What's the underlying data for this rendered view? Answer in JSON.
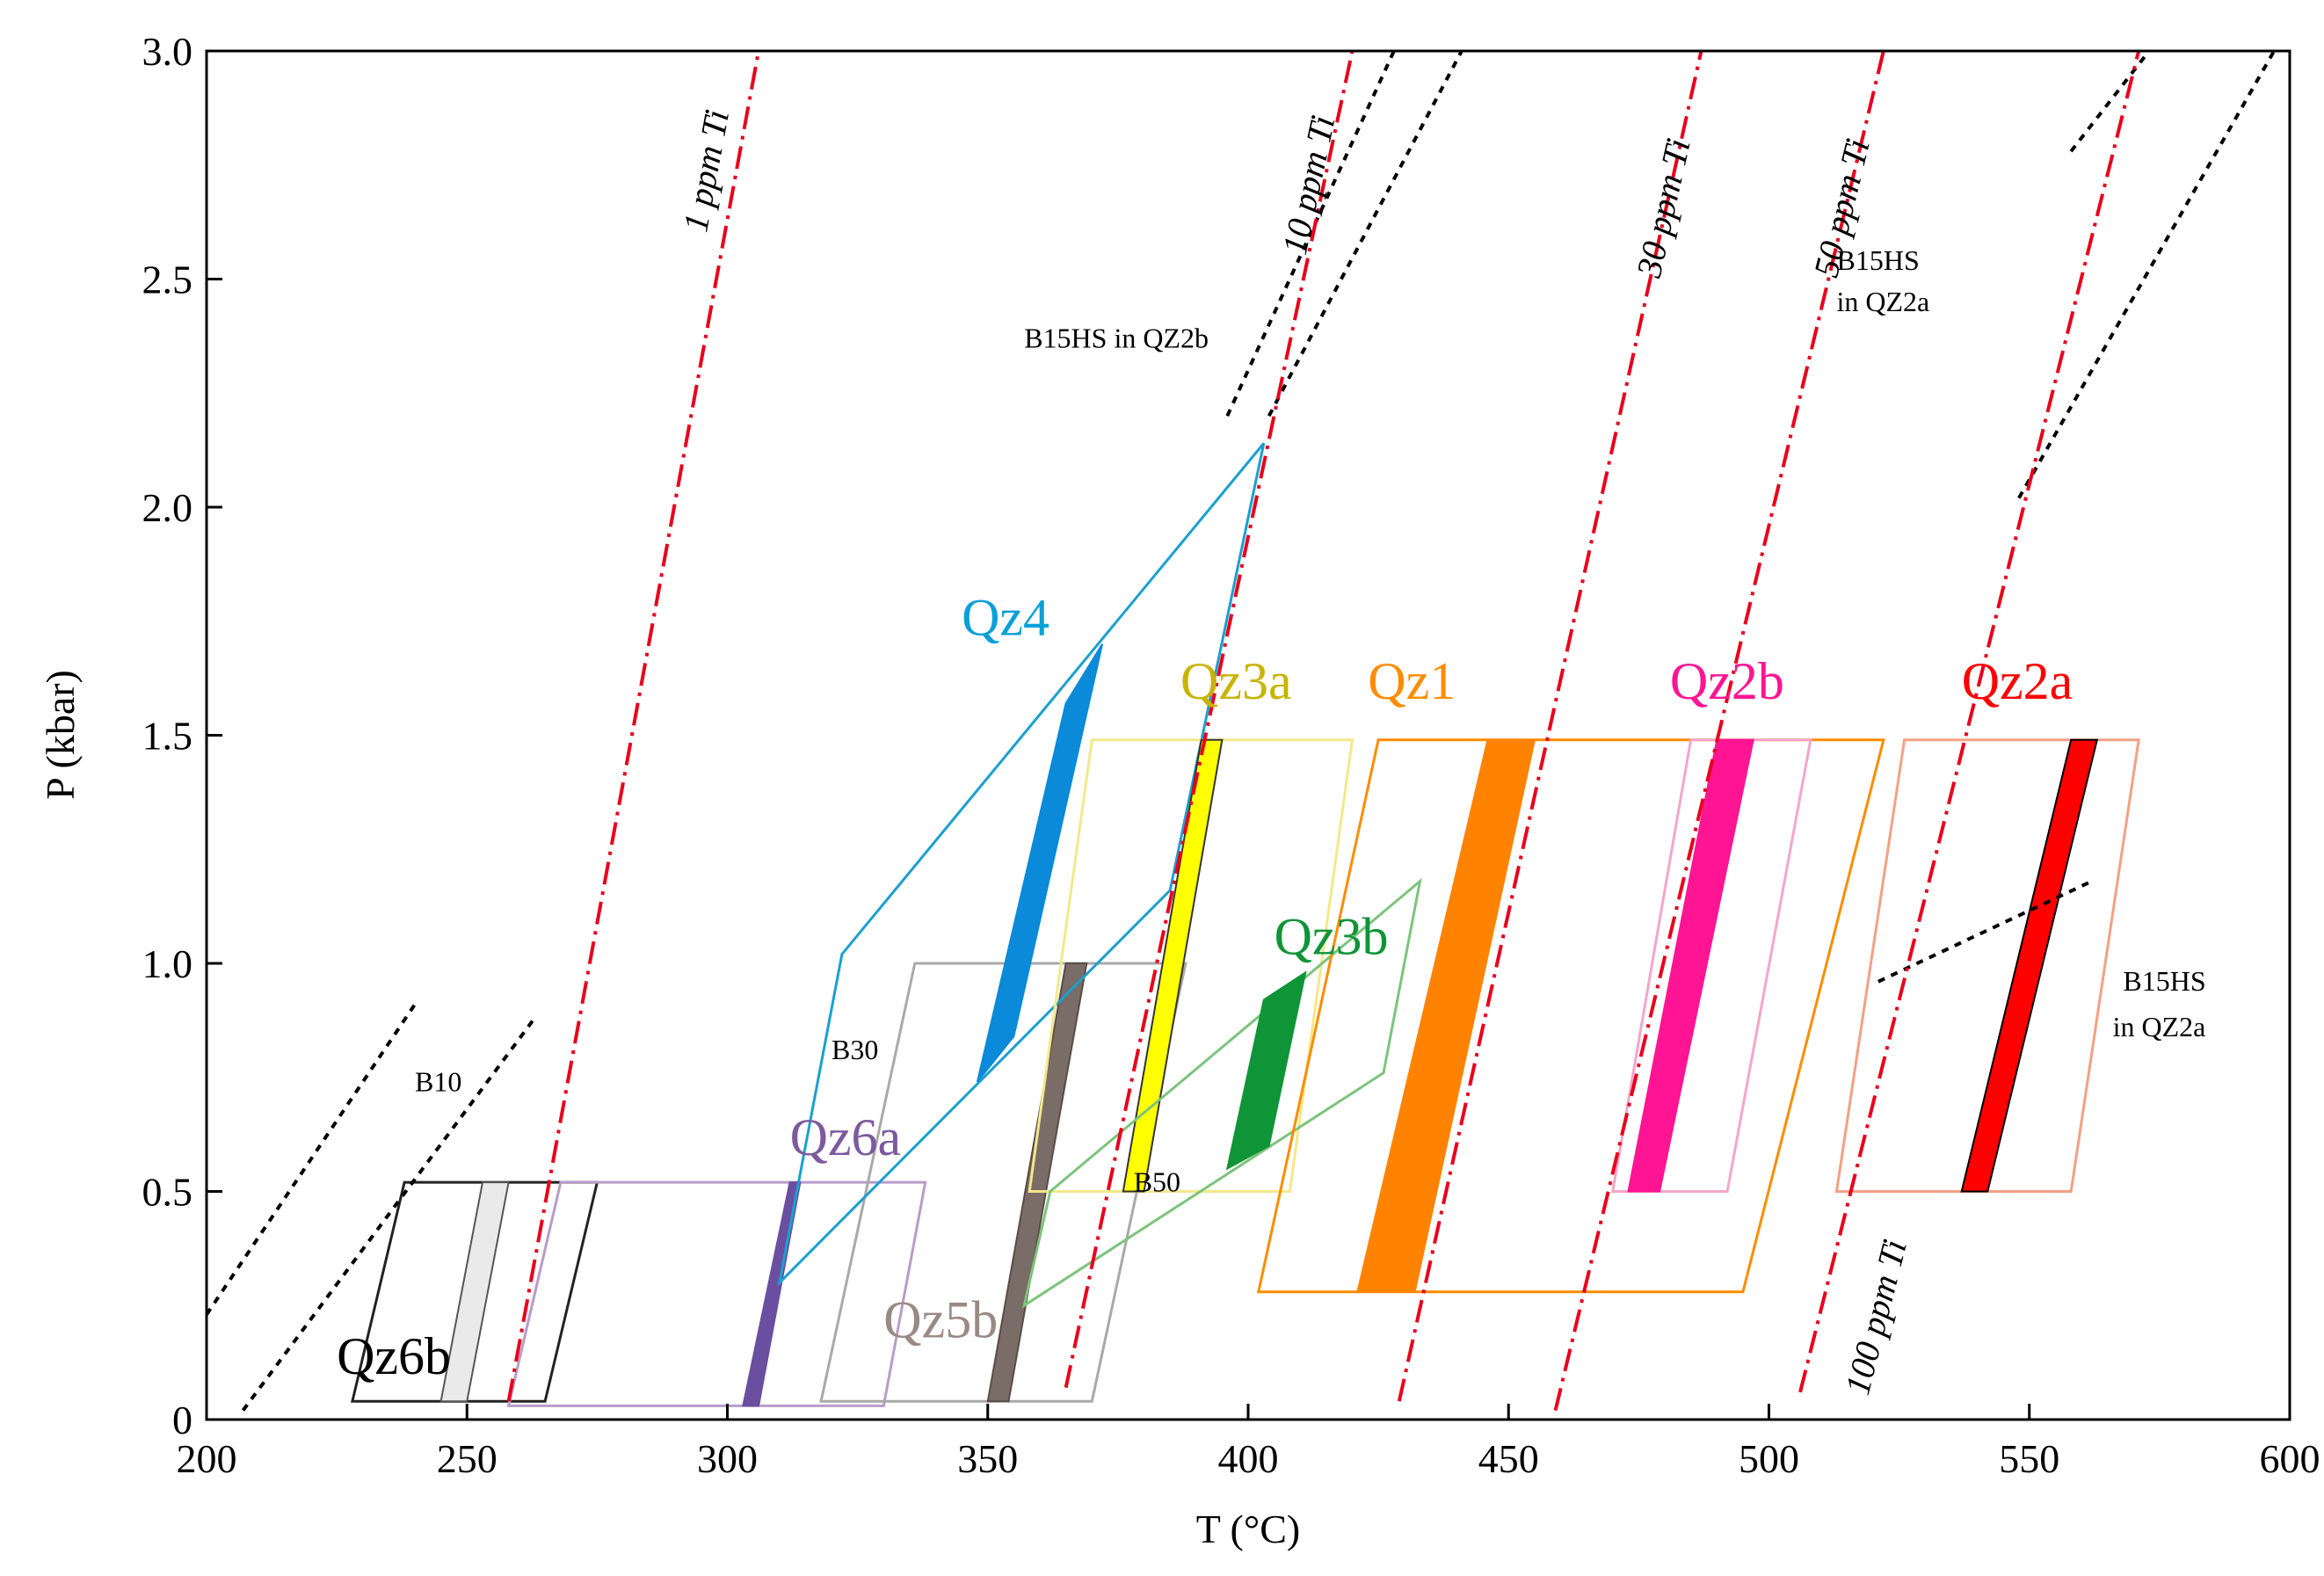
{
  "chart_data": {
    "type": "line",
    "title": "",
    "xlabel": "T (°C)",
    "ylabel": "P (kbar)",
    "xlim": [
      200,
      600
    ],
    "ylim": [
      0,
      3.0
    ],
    "x_ticks": [
      {
        "value": 200,
        "label": "200"
      },
      {
        "value": 250,
        "label": "250"
      },
      {
        "value": 300,
        "label": "300"
      },
      {
        "value": 350,
        "label": "350"
      },
      {
        "value": 400,
        "label": "400"
      },
      {
        "value": 450,
        "label": "450"
      },
      {
        "value": 500,
        "label": "500"
      },
      {
        "value": 550,
        "label": "550"
      },
      {
        "value": 600,
        "label": "600"
      }
    ],
    "y_ticks": [
      {
        "value": 0,
        "label": "0"
      },
      {
        "value": 0.5,
        "label": "0.5"
      },
      {
        "value": 1.0,
        "label": "1.0"
      },
      {
        "value": 1.5,
        "label": "1.5"
      },
      {
        "value": 2.0,
        "label": "2.0"
      },
      {
        "value": 2.5,
        "label": "2.5"
      },
      {
        "value": 3.0,
        "label": "3.0"
      }
    ],
    "ti_isopleths": [
      {
        "label": "1 ppm Ti",
        "color": "#e8001c",
        "points": [
          [
            258,
            0.04
          ],
          [
            306,
            3.0
          ]
        ],
        "label_at": [
          296,
          2.6
        ]
      },
      {
        "label": "10 ppm Ti",
        "color": "#e8001c",
        "points": [
          [
            365,
            0.07
          ],
          [
            420,
            3.0
          ]
        ],
        "label_at": [
          411,
          2.55
        ]
      },
      {
        "label": "30 ppm Ti",
        "color": "#e8001c",
        "points": [
          [
            429,
            0.04
          ],
          [
            487,
            3.0
          ]
        ],
        "label_at": [
          479,
          2.5
        ]
      },
      {
        "label": "50 ppm Ti",
        "color": "#e8001c",
        "points": [
          [
            459,
            0.02
          ],
          [
            522,
            3.0
          ]
        ],
        "label_at": [
          513,
          2.5
        ]
      },
      {
        "label": "100 ppm Ti",
        "color": "#e8001c",
        "points": [
          [
            506,
            0.06
          ],
          [
            571,
            3.0
          ]
        ],
        "label_at": [
          519,
          0.05
        ]
      }
    ],
    "isochores": [
      {
        "name": "B10 left",
        "points": [
          [
            200,
            0.23
          ],
          [
            240,
            0.91
          ]
        ]
      },
      {
        "name": "B10 right",
        "points": [
          [
            207,
            0.02
          ],
          [
            263,
            0.88
          ]
        ]
      },
      {
        "name": "B15HS in QZ2b a",
        "points": [
          [
            396,
            2.2
          ],
          [
            428,
            3.0
          ]
        ]
      },
      {
        "name": "B15HS in QZ2b b",
        "points": [
          [
            404,
            2.2
          ],
          [
            441,
            3.0
          ]
        ]
      },
      {
        "name": "B15HS in QZ2a upper",
        "points": [
          [
            558,
            2.78
          ],
          [
            573,
            3.0
          ]
        ]
      },
      {
        "name": "B15HS in QZ2a main",
        "points": [
          [
            548,
            2.02
          ],
          [
            598,
            3.02
          ]
        ]
      },
      {
        "name": "B15HS in QZ2a lower",
        "points": [
          [
            521,
            0.96
          ],
          [
            562,
            1.18
          ]
        ]
      }
    ],
    "fields": [
      {
        "name": "Qz6b",
        "color": "#222222",
        "outline": [
          [
            228,
            0.04
          ],
          [
            238,
            0.52
          ],
          [
            275,
            0.52
          ],
          [
            265,
            0.04
          ]
        ],
        "band": [
          [
            245,
            0.04
          ],
          [
            253,
            0.52
          ],
          [
            258,
            0.52
          ],
          [
            250,
            0.04
          ]
        ],
        "band_color": "#eaeaea",
        "band_stroke": "#555555",
        "label": {
          "text": "Qz6b",
          "at": [
            225,
            0.1
          ],
          "color": "#000000"
        }
      },
      {
        "name": "Qz6a",
        "color": "#b89cc9",
        "outline": [
          [
            258,
            0.03
          ],
          [
            268,
            0.52
          ],
          [
            338,
            0.52
          ],
          [
            330,
            0.03
          ]
        ],
        "band": [
          [
            303,
            0.03
          ],
          [
            312,
            0.52
          ],
          [
            314,
            0.52
          ],
          [
            306,
            0.03
          ]
        ],
        "band_color": "#6a4fa0",
        "band_stroke": "#6a4fa0",
        "label": {
          "text": "Qz6a",
          "at": [
            312,
            0.58
          ],
          "color": "#7d5a9e"
        }
      },
      {
        "name": "Qz5b",
        "color": "#a9a9a9",
        "outline": [
          [
            318,
            0.04
          ],
          [
            336,
            1.0
          ],
          [
            388,
            1.0
          ],
          [
            370,
            0.04
          ]
        ],
        "band": [
          [
            350,
            0.04
          ],
          [
            365,
            1.0
          ],
          [
            369,
            1.0
          ],
          [
            354,
            0.04
          ]
        ],
        "band_color": "#7a6c66",
        "band_stroke": "#5a4c46",
        "label": {
          "text": "Qz5b",
          "at": [
            330,
            0.18
          ],
          "color": "#9a8a84"
        }
      },
      {
        "name": "Qz4",
        "color": "#1aa0d0",
        "outline": [
          [
            310,
            0.3
          ],
          [
            322,
            1.02
          ],
          [
            403,
            2.14
          ],
          [
            385,
            1.16
          ]
        ],
        "band": [
          [
            348,
            0.74
          ],
          [
            365,
            1.57
          ],
          [
            372,
            1.7
          ],
          [
            355,
            0.84
          ]
        ],
        "band_color": "#0a8ad8",
        "band_stroke": "#0a8ad8",
        "label": {
          "text": "Qz4",
          "at": [
            345,
            1.72
          ],
          "color": "#0aa0d8"
        }
      },
      {
        "name": "Qz3a",
        "color": "#f4e88a",
        "outline": [
          [
            358,
            0.5
          ],
          [
            370,
            1.49
          ],
          [
            420,
            1.49
          ],
          [
            408,
            0.5
          ]
        ],
        "band": [
          [
            376,
            0.5
          ],
          [
            391,
            1.49
          ],
          [
            395,
            1.49
          ],
          [
            380,
            0.5
          ]
        ],
        "band_color": "#ffff00",
        "band_stroke": "#333333",
        "label": {
          "text": "Qz3a",
          "at": [
            387,
            1.58
          ],
          "color": "#c8b400"
        }
      },
      {
        "name": "Qz3b",
        "color": "#7cc47c",
        "outline": [
          [
            357,
            0.25
          ],
          [
            362,
            0.5
          ],
          [
            433,
            1.18
          ],
          [
            426,
            0.76
          ]
        ],
        "band": [
          [
            396,
            0.55
          ],
          [
            403,
            0.92
          ],
          [
            411,
            0.98
          ],
          [
            404,
            0.6
          ]
        ],
        "band_color": "#109438",
        "band_stroke": "#109438",
        "label": {
          "text": "Qz3b",
          "at": [
            405,
            1.02
          ],
          "color": "#109438"
        }
      },
      {
        "name": "Qz1",
        "color": "#ff8c00",
        "outline": [
          [
            402,
            0.28
          ],
          [
            425,
            1.49
          ],
          [
            522,
            1.49
          ],
          [
            495,
            0.28
          ]
        ],
        "band": [
          [
            421,
            0.28
          ],
          [
            446,
            1.49
          ],
          [
            455,
            1.49
          ],
          [
            432,
            0.28
          ]
        ],
        "band_color": "#ff8300",
        "band_stroke": "#ff8300",
        "label": {
          "text": "Qz1",
          "at": [
            423,
            1.58
          ],
          "color": "#ff8c00"
        }
      },
      {
        "name": "Qz2b",
        "color": "#f4a6c8",
        "outline": [
          [
            470,
            0.5
          ],
          [
            485,
            1.49
          ],
          [
            508,
            1.49
          ],
          [
            492,
            0.5
          ]
        ],
        "band": [
          [
            473,
            0.5
          ],
          [
            490,
            1.49
          ],
          [
            497,
            1.49
          ],
          [
            479,
            0.5
          ]
        ],
        "band_color": "#ff1493",
        "band_stroke": "#ff1493",
        "label": {
          "text": "Qz2b",
          "at": [
            481,
            1.58
          ],
          "color": "#ff1493"
        }
      },
      {
        "name": "Qz2a",
        "color": "#f4a084",
        "outline": [
          [
            513,
            0.5
          ],
          [
            526,
            1.49
          ],
          [
            571,
            1.49
          ],
          [
            558,
            0.5
          ]
        ],
        "band": [
          [
            537,
            0.5
          ],
          [
            558,
            1.49
          ],
          [
            563,
            1.49
          ],
          [
            542,
            0.5
          ]
        ],
        "band_color": "#ff0000",
        "band_stroke": "#000000",
        "label": {
          "text": "Qz2a",
          "at": [
            537,
            1.58
          ],
          "color": "#ff0000"
        }
      }
    ],
    "annotations": [
      {
        "text": "B10",
        "at": [
          240,
          0.72
        ]
      },
      {
        "text": "B30",
        "at": [
          320,
          0.79
        ]
      },
      {
        "text": "B50",
        "at": [
          378,
          0.5
        ]
      },
      {
        "text": "B15HS in QZ2b",
        "at": [
          357,
          2.35
        ]
      },
      {
        "text": "B15HS",
        "at": [
          513,
          2.52
        ]
      },
      {
        "text": "in QZ2a",
        "at": [
          513,
          2.43
        ]
      },
      {
        "text": "B15HS",
        "at": [
          568,
          0.94
        ]
      },
      {
        "text": "in QZ2a",
        "at": [
          566,
          0.84
        ]
      }
    ],
    "grid": false,
    "legend": "none"
  }
}
